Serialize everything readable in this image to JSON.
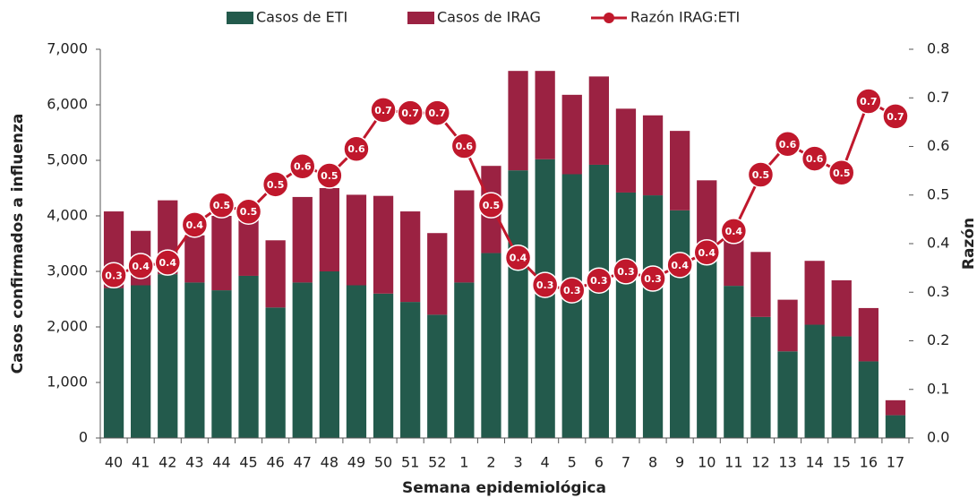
{
  "chart_data": {
    "type": "bar",
    "y_label": "Casos confirmados a influenza",
    "y2_label": "Razón",
    "x_label": "Semana epidemiológica",
    "categories": [
      "40",
      "41",
      "42",
      "43",
      "44",
      "45",
      "46",
      "47",
      "48",
      "49",
      "50",
      "51",
      "52",
      "1",
      "2",
      "3",
      "4",
      "5",
      "6",
      "7",
      "8",
      "9",
      "10",
      "11",
      "12",
      "13",
      "14",
      "15",
      "16",
      "17"
    ],
    "series": [
      {
        "name": "Casos de ETI",
        "type": "bar",
        "color": "#235a4c",
        "values": [
          2700,
          2750,
          2950,
          2800,
          2660,
          2920,
          2350,
          2800,
          3000,
          2750,
          2600,
          2450,
          2220,
          2800,
          3330,
          4820,
          5020,
          4750,
          4920,
          4420,
          4370,
          4100,
          3200,
          2740,
          2180,
          1560,
          2040,
          1830,
          1380,
          410
        ]
      },
      {
        "name": "Casos de IRAG",
        "type": "bar",
        "color": "#9b2242",
        "values": [
          1380,
          980,
          1330,
          850,
          1340,
          1180,
          1210,
          1540,
          1500,
          1630,
          1760,
          1630,
          1470,
          1660,
          1570,
          1790,
          1590,
          1430,
          1590,
          1510,
          1440,
          1430,
          1440,
          860,
          1170,
          930,
          1150,
          1010,
          960,
          270
        ]
      },
      {
        "name": "Razón IRAG:ETI",
        "type": "line",
        "axis": "y2",
        "color": "#c0182c",
        "values": [
          0.335,
          0.354,
          0.361,
          0.439,
          0.479,
          0.466,
          0.522,
          0.559,
          0.54,
          0.595,
          0.675,
          0.669,
          0.669,
          0.601,
          0.479,
          0.371,
          0.315,
          0.304,
          0.324,
          0.343,
          0.328,
          0.356,
          0.382,
          0.426,
          0.542,
          0.605,
          0.575,
          0.546,
          0.693,
          0.662
        ],
        "value_labels": [
          "0.3",
          "0.4",
          "0.4",
          "0.4",
          "0.5",
          "0.5",
          "0.5",
          "0.6",
          "0.5",
          "0.6",
          "0.7",
          "0.7",
          "0.7",
          "0.6",
          "0.5",
          "0.4",
          "0.3",
          "0.3",
          "0.3",
          "0.3",
          "0.3",
          "0.4",
          "0.4",
          "0.4",
          "0.5",
          "0.6",
          "0.6",
          "0.5",
          "0.7",
          "0.7"
        ]
      }
    ],
    "ylim": [
      0,
      7000
    ],
    "yticks": [
      {
        "value": 0,
        "label": "0"
      },
      {
        "value": 1000,
        "label": "1,000"
      },
      {
        "value": 2000,
        "label": "2,000"
      },
      {
        "value": 3000,
        "label": "3,000"
      },
      {
        "value": 4000,
        "label": "4,000"
      },
      {
        "value": 5000,
        "label": "5,000"
      },
      {
        "value": 6000,
        "label": "6,000"
      },
      {
        "value": 7000,
        "label": "7,000"
      }
    ],
    "y2lim": [
      0,
      0.8
    ],
    "y2ticks": [
      {
        "value": 0,
        "label": "0.0"
      },
      0.1,
      0.2,
      0.3,
      0.4,
      0.5,
      0.6,
      0.7,
      0.8
    ],
    "legend": "top"
  }
}
